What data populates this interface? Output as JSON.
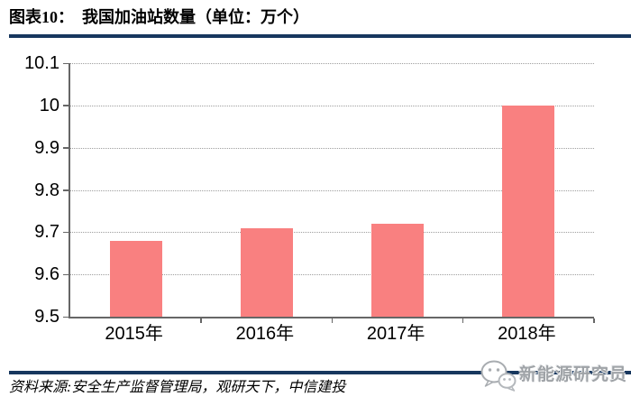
{
  "header": {
    "title": "图表10：  我国加油站数量（单位：万个）"
  },
  "chart_data": {
    "type": "bar",
    "figure_label": "图表10",
    "title": "我国加油站数量（单位：万个）",
    "categories": [
      "2015年",
      "2016年",
      "2017年",
      "2018年"
    ],
    "values": [
      9.68,
      9.71,
      9.72,
      10.0
    ],
    "xlabel": "",
    "ylabel": "",
    "ylim": [
      9.5,
      10.1
    ],
    "yticks": [
      {
        "value": 9.5,
        "label": "9.5"
      },
      {
        "value": 9.6,
        "label": "9.6"
      },
      {
        "value": 9.7,
        "label": "9.7"
      },
      {
        "value": 9.8,
        "label": "9.8"
      },
      {
        "value": 9.9,
        "label": "9.9"
      },
      {
        "value": 10.0,
        "label": "10"
      },
      {
        "value": 10.1,
        "label": "10.1"
      }
    ],
    "grid": "horizontal-dotted",
    "legend": "none",
    "bar_color": "#F98080"
  },
  "footer": {
    "source": "资料来源:安全生产监督管理局，观研天下，中信建投",
    "logo_text": "新能源研究员",
    "logo_icon": "wechat-icon"
  },
  "colors": {
    "rule": "#17375E",
    "axis": "#666666",
    "gridline": "#9E9E9E",
    "bar": "#F98080",
    "text": "#000000",
    "logo_text": "#9FA3A7"
  }
}
